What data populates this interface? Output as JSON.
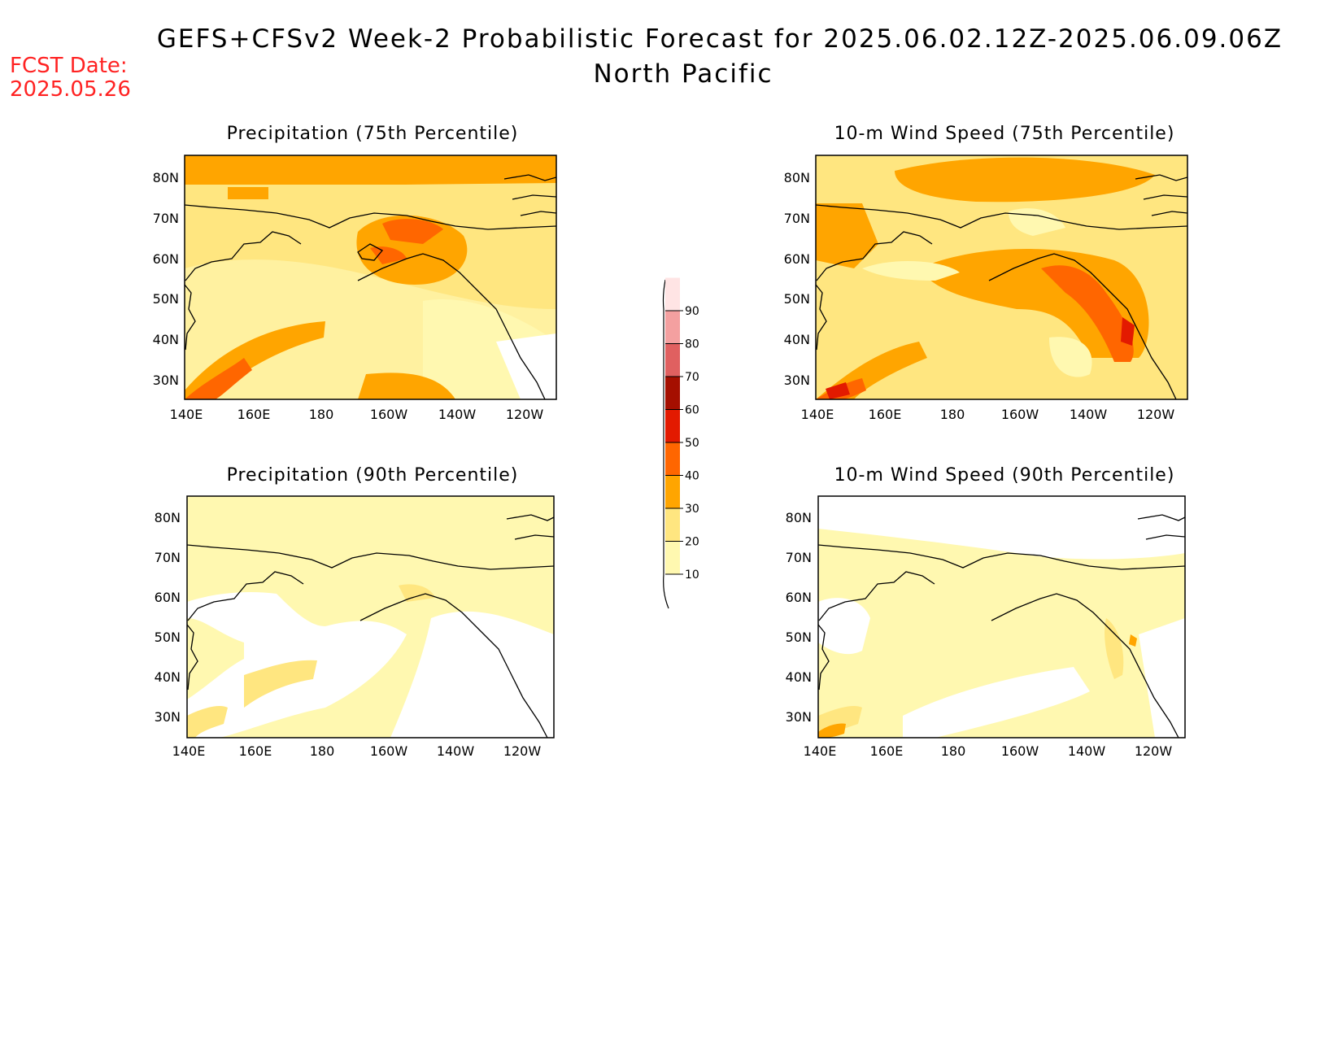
{
  "header": {
    "title": "GEFS+CFSv2 Week-2 Probabilistic Forecast for 2025.06.02.12Z-2025.06.09.06Z",
    "subtitle": "North Pacific",
    "fcst_label": "FCST Date:",
    "fcst_date": "2025.05.26"
  },
  "panels": [
    {
      "title": "Precipitation (75th Percentile)",
      "variable": "precipitation",
      "percentile": 75
    },
    {
      "title": "10-m Wind Speed (75th Percentile)",
      "variable": "wind",
      "percentile": 75
    },
    {
      "title": "Precipitation (90th Percentile)",
      "variable": "precipitation",
      "percentile": 90
    },
    {
      "title": "10-m Wind Speed (90th Percentile)",
      "variable": "wind",
      "percentile": 90
    }
  ],
  "axes": {
    "lat_ticks": [
      "80N",
      "70N",
      "60N",
      "50N",
      "40N",
      "30N"
    ],
    "lon_ticks": [
      "140E",
      "160E",
      "180",
      "160W",
      "140W",
      "120W"
    ],
    "lat_range": [
      25,
      85
    ],
    "lon_range": [
      140,
      250
    ]
  },
  "colorbar": {
    "levels": [
      10,
      20,
      30,
      40,
      50,
      60,
      70,
      80,
      90
    ],
    "labels": [
      "10",
      "20",
      "30",
      "40",
      "50",
      "60",
      "70",
      "80",
      "90"
    ],
    "colors": [
      "#fff8b0",
      "#ffe680",
      "#ffa500",
      "#ff6600",
      "#e31a00",
      "#a50f00",
      "#e06060",
      "#f4a0a0",
      "#ffe4e4"
    ]
  }
}
